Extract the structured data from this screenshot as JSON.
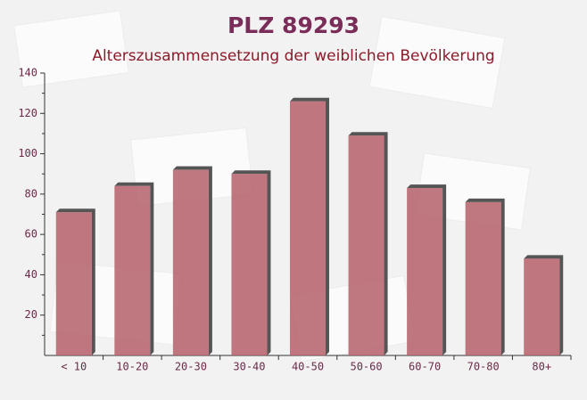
{
  "chart_data": {
    "type": "bar",
    "title": "PLZ 89293",
    "subtitle": "Alterszusammensetzung der weiblichen Bevölkerung",
    "categories": [
      "< 10",
      "10-20",
      "20-30",
      "30-40",
      "40-50",
      "50-60",
      "60-70",
      "70-80",
      "80+"
    ],
    "values": [
      71,
      84,
      92,
      90,
      126,
      109,
      83,
      76,
      48
    ],
    "color": "#b5606a",
    "ylim": [
      0,
      140
    ],
    "yticks": [
      20,
      40,
      60,
      80,
      100,
      120,
      140
    ],
    "grid": false
  }
}
